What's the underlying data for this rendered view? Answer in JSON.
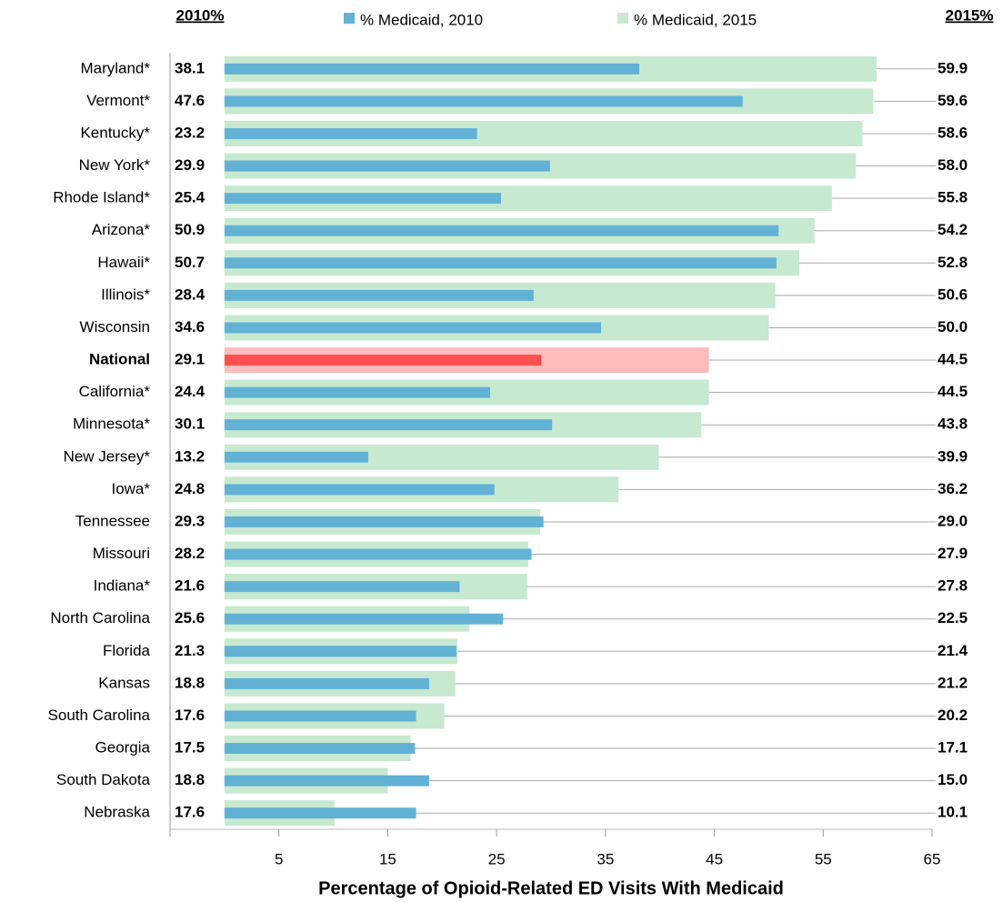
{
  "chart_data": {
    "type": "paired-bar",
    "left_header": "2010%",
    "right_header": "2015%",
    "x_label": "Percentage of Opioid-Related ED Visits With Medicaid",
    "categories": [
      "Maryland*",
      "Vermont*",
      "Kentucky*",
      "New York*",
      "Rhode Island*",
      "Arizona*",
      "Hawaii*",
      "Illinois*",
      "Wisconsin",
      "National",
      "California*",
      "Minnesota*",
      "New Jersey*",
      "Iowa*",
      "Tennessee",
      "Missouri",
      "Indiana*",
      "North Carolina",
      "Florida",
      "Kansas",
      "South Carolina",
      "Georgia",
      "South Dakota",
      "Nebraska"
    ],
    "series": [
      {
        "name": "% Medicaid,  2010",
        "color": "#62b2d6",
        "values": [
          38.1,
          47.6,
          23.2,
          29.9,
          25.4,
          50.9,
          50.7,
          28.4,
          34.6,
          29.1,
          24.4,
          30.1,
          13.2,
          24.8,
          29.3,
          28.2,
          21.6,
          25.6,
          21.3,
          18.8,
          17.6,
          17.5,
          18.8,
          17.6
        ]
      },
      {
        "name": "% Medicaid,  2015",
        "color": "#c6e9d0",
        "values": [
          59.9,
          59.6,
          58.6,
          58.0,
          55.8,
          54.2,
          52.8,
          50.6,
          50.0,
          44.5,
          44.5,
          43.8,
          39.9,
          36.2,
          29.0,
          27.9,
          27.8,
          22.5,
          21.4,
          21.2,
          20.2,
          17.1,
          15.0,
          10.1
        ],
        "value_labels": [
          "59.9",
          "59.6",
          "58.6",
          "58.0",
          "55.8",
          "54.2",
          "52.8",
          "50.6",
          "50.0",
          "44.5",
          "44.5",
          "43.8",
          "39.9",
          "36.2",
          "29.0",
          "27.9",
          "27.8",
          "22.5",
          "21.4",
          "21.2",
          "20.2",
          "17.1",
          "15.0",
          "10.1"
        ]
      }
    ],
    "highlight_index": 9,
    "highlight_colors": [
      "#ff4f4f",
      "#ffbcbc"
    ],
    "highlight_text_color": "#ee2c2c",
    "xlim": [
      -5,
      65
    ],
    "xticks": [
      5,
      15,
      25,
      35,
      45,
      55,
      65
    ]
  }
}
